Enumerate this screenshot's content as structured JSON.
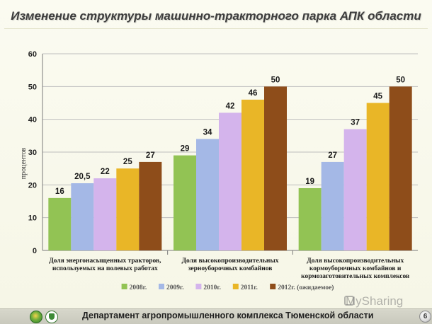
{
  "slide": {
    "title": "Изменение структуры машинно-тракторного парка АПК области",
    "footer_text": "Департамент агропромышленного комплекса Тюменской области",
    "page_number": "6",
    "watermark": "MySharing"
  },
  "chart_data": {
    "type": "bar",
    "title": "",
    "ylabel": "процентов",
    "xlabel": "",
    "ylim": [
      0,
      60
    ],
    "yticks": [
      0,
      10,
      20,
      30,
      40,
      50,
      60
    ],
    "grid": true,
    "legend_position": "bottom",
    "categories": [
      [
        "Доля энергонасыщенных тракторов,",
        "используемых на полевых работах"
      ],
      [
        "Доля высокопроизводительных",
        "зерноуборочных комбайнов"
      ],
      [
        "Доля высокопроизводительных",
        "кормоуборочных комбайнов и",
        "кормозаготовительных комплексов"
      ]
    ],
    "series": [
      {
        "name": "2008г.",
        "color": "#92c354",
        "values": [
          16,
          29,
          19
        ],
        "labels": [
          "16",
          "29",
          "19"
        ]
      },
      {
        "name": "2009г.",
        "color": "#a4b8e6",
        "values": [
          20.5,
          34,
          27
        ],
        "labels": [
          "20,5",
          "34",
          "27"
        ]
      },
      {
        "name": "2010г.",
        "color": "#d4b4ec",
        "values": [
          22,
          42,
          37
        ],
        "labels": [
          "22",
          "42",
          "37"
        ]
      },
      {
        "name": "2011г.",
        "color": "#e9b627",
        "values": [
          25,
          46,
          45
        ],
        "labels": [
          "25",
          "46",
          "45"
        ]
      },
      {
        "name": "2012г. (ожидаемое)",
        "color": "#8e4d1a",
        "values": [
          27,
          50,
          50
        ],
        "labels": [
          "27",
          "50",
          "50"
        ]
      }
    ]
  }
}
